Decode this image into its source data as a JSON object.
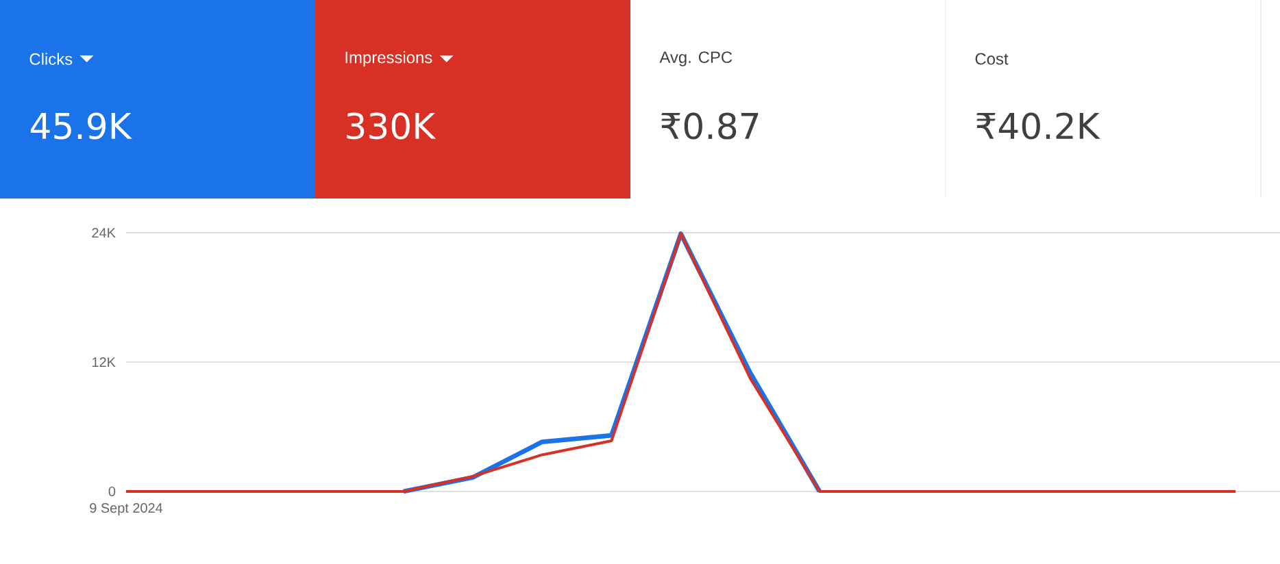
{
  "chart_data": [
    {
      "type": "other",
      "colors": [
        "#1a73e8",
        "#d93025",
        "#ffffff",
        "#ffffff"
      ],
      "annotations": [
        "Clicks",
        "45.9K",
        "Impressions",
        "330K",
        "Avg. CPC",
        "₹0.87",
        "Cost",
        "₹40.2K"
      ]
    },
    {
      "type": "line",
      "categories": [
        "9 Sept 2024",
        null,
        null,
        null,
        null,
        null,
        null,
        null,
        null,
        null,
        null,
        null,
        null,
        null,
        null,
        null,
        null
      ],
      "series": [
        {
          "color": "#1a73e8",
          "values": [
            null,
            null,
            null,
            null,
            0,
            1300,
            4600,
            5200,
            23900,
            11000,
            0,
            null,
            null,
            null,
            null,
            null,
            null
          ]
        },
        {
          "color": "#d93025",
          "values": [
            0,
            0,
            0,
            0,
            0,
            1400,
            3400,
            4700,
            23900,
            10500,
            0,
            0,
            0,
            0,
            0,
            0,
            0
          ]
        }
      ],
      "ylim": [
        0,
        24000
      ],
      "yticks": [
        {
          "value": 0,
          "label": "0"
        },
        {
          "value": 12000,
          "label": "12K"
        },
        {
          "value": 24000,
          "label": "24K"
        }
      ],
      "grid": "y"
    }
  ]
}
